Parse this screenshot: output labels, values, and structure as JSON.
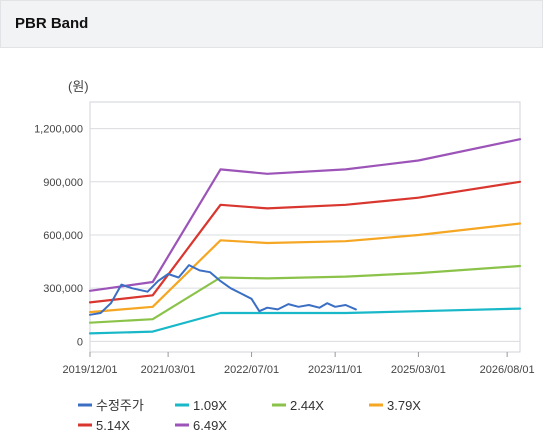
{
  "header": {
    "title": "PBR Band"
  },
  "chart_data": {
    "type": "line",
    "unit_label": "(원)",
    "x_range": [
      "2019-12-01",
      "2026-10-15"
    ],
    "x_ticks": [
      "2019/12/01",
      "2021/03/01",
      "2022/07/01",
      "2023/11/01",
      "2025/03/01",
      "2026/08/01"
    ],
    "ylim": [
      -60000,
      1350000
    ],
    "y_ticks": [
      0,
      300000,
      600000,
      900000,
      1200000
    ],
    "y_tick_labels": [
      "0",
      "300,000",
      "600,000",
      "900,000",
      "1,200,000"
    ],
    "legend_placement": "bottom",
    "series": [
      {
        "name": "수정주가",
        "color": "#3b6fc4",
        "points": [
          [
            "2019-12-01",
            150000
          ],
          [
            "2020-02-01",
            160000
          ],
          [
            "2020-04-01",
            215000
          ],
          [
            "2020-06-01",
            320000
          ],
          [
            "2020-08-01",
            300000
          ],
          [
            "2020-11-01",
            280000
          ],
          [
            "2021-01-01",
            340000
          ],
          [
            "2021-03-01",
            380000
          ],
          [
            "2021-05-01",
            360000
          ],
          [
            "2021-07-01",
            430000
          ],
          [
            "2021-09-01",
            400000
          ],
          [
            "2021-11-01",
            390000
          ],
          [
            "2022-01-01",
            340000
          ],
          [
            "2022-03-01",
            300000
          ],
          [
            "2022-05-01",
            270000
          ],
          [
            "2022-07-01",
            240000
          ],
          [
            "2022-08-15",
            170000
          ],
          [
            "2022-10-01",
            190000
          ],
          [
            "2022-12-01",
            180000
          ],
          [
            "2023-02-01",
            210000
          ],
          [
            "2023-04-01",
            195000
          ],
          [
            "2023-06-01",
            205000
          ],
          [
            "2023-08-01",
            190000
          ],
          [
            "2023-09-15",
            215000
          ],
          [
            "2023-11-01",
            195000
          ],
          [
            "2024-01-01",
            205000
          ],
          [
            "2024-03-01",
            180000
          ]
        ]
      },
      {
        "name": "1.09X",
        "color": "#19b8c8",
        "points": [
          [
            "2019-12-01",
            45000
          ],
          [
            "2020-12-01",
            55000
          ],
          [
            "2022-01-01",
            160000
          ],
          [
            "2024-01-01",
            160000
          ],
          [
            "2025-03-01",
            170000
          ],
          [
            "2026-10-15",
            185000
          ]
        ]
      },
      {
        "name": "2.44X",
        "color": "#8bc34a",
        "points": [
          [
            "2019-12-01",
            105000
          ],
          [
            "2020-12-01",
            125000
          ],
          [
            "2022-01-01",
            360000
          ],
          [
            "2022-10-01",
            355000
          ],
          [
            "2024-01-01",
            365000
          ],
          [
            "2025-03-01",
            385000
          ],
          [
            "2026-10-15",
            425000
          ]
        ]
      },
      {
        "name": "3.79X",
        "color": "#f5a623",
        "points": [
          [
            "2019-12-01",
            165000
          ],
          [
            "2020-12-01",
            195000
          ],
          [
            "2022-01-01",
            570000
          ],
          [
            "2022-10-01",
            555000
          ],
          [
            "2024-01-01",
            565000
          ],
          [
            "2025-03-01",
            600000
          ],
          [
            "2026-10-15",
            665000
          ]
        ]
      },
      {
        "name": "5.14X",
        "color": "#d8362e",
        "points": [
          [
            "2019-12-01",
            220000
          ],
          [
            "2020-12-01",
            260000
          ],
          [
            "2022-01-01",
            770000
          ],
          [
            "2022-10-01",
            750000
          ],
          [
            "2024-01-01",
            770000
          ],
          [
            "2025-03-01",
            810000
          ],
          [
            "2026-10-15",
            900000
          ]
        ]
      },
      {
        "name": "6.49X",
        "color": "#9c54b8",
        "points": [
          [
            "2019-12-01",
            285000
          ],
          [
            "2020-12-01",
            335000
          ],
          [
            "2022-01-01",
            970000
          ],
          [
            "2022-10-01",
            945000
          ],
          [
            "2024-01-01",
            970000
          ],
          [
            "2025-03-01",
            1020000
          ],
          [
            "2026-10-15",
            1140000
          ]
        ]
      }
    ]
  }
}
